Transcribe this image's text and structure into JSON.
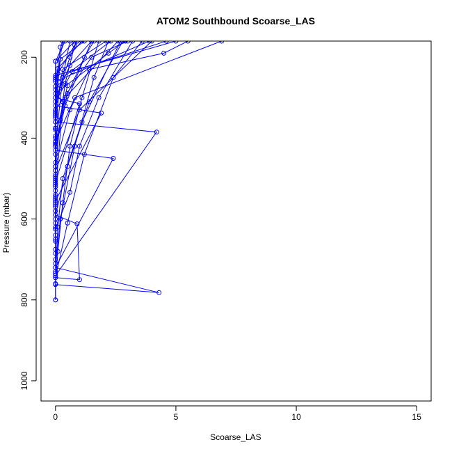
{
  "chart_data": {
    "type": "line",
    "title": "ATOM2 Southbound Scoarse_LAS",
    "xlabel": "Scoarse_LAS",
    "ylabel": "Pressure (mbar)",
    "xlim": [
      -0.6,
      15.6
    ],
    "ylim": [
      1050,
      160
    ],
    "y_reversed": true,
    "grid": false,
    "legend": "none",
    "x_ticks": [
      0,
      5,
      10,
      15
    ],
    "y_ticks": [
      200,
      400,
      600,
      800,
      1000
    ],
    "color": "#0000ff",
    "marker": "open-circle",
    "series": [
      {
        "points": [
          [
            0,
            800
          ],
          [
            0,
            760
          ],
          [
            0.1,
            680
          ],
          [
            0.3,
            560
          ],
          [
            0.6,
            420
          ],
          [
            1.1,
            300
          ],
          [
            1.8,
            160
          ]
        ]
      },
      {
        "points": [
          [
            0,
            800
          ],
          [
            0,
            745
          ],
          [
            0.5,
            610
          ],
          [
            1.2,
            440
          ],
          [
            2.4,
            250
          ],
          [
            3.6,
            160
          ]
        ]
      },
      {
        "points": [
          [
            0,
            762
          ],
          [
            4.3,
            782
          ],
          [
            0,
            720
          ],
          [
            0.2,
            600
          ],
          [
            0.8,
            420
          ],
          [
            1.6,
            250
          ],
          [
            2.2,
            160
          ]
        ]
      },
      {
        "points": [
          [
            0,
            745
          ],
          [
            1.0,
            750
          ],
          [
            0.9,
            612
          ],
          [
            0,
            590
          ],
          [
            0.5,
            470
          ],
          [
            1.4,
            310
          ],
          [
            2.8,
            160
          ]
        ]
      },
      {
        "points": [
          [
            0,
            730
          ],
          [
            0,
            625
          ],
          [
            0.6,
            534
          ],
          [
            1.0,
            420
          ],
          [
            1.8,
            300
          ],
          [
            3.2,
            160
          ]
        ]
      },
      {
        "points": [
          [
            0,
            720
          ],
          [
            2.4,
            450
          ],
          [
            0,
            430
          ],
          [
            0.4,
            320
          ],
          [
            1.0,
            230
          ],
          [
            1.5,
            160
          ]
        ]
      },
      {
        "points": [
          [
            0,
            740
          ],
          [
            4.2,
            385
          ],
          [
            0,
            360
          ],
          [
            0.2,
            270
          ],
          [
            0.6,
            200
          ],
          [
            0.9,
            160
          ]
        ]
      },
      {
        "points": [
          [
            0,
            700
          ],
          [
            0,
            555
          ],
          [
            1.9,
            338
          ],
          [
            0,
            320
          ],
          [
            0.3,
            250
          ],
          [
            0.6,
            160
          ]
        ]
      },
      {
        "points": [
          [
            0,
            685
          ],
          [
            0,
            510
          ],
          [
            1.0,
            315
          ],
          [
            0,
            300
          ],
          [
            0.1,
            240
          ],
          [
            0.3,
            160
          ]
        ]
      },
      {
        "points": [
          [
            0,
            655
          ],
          [
            0,
            495
          ],
          [
            0,
            410
          ],
          [
            0.5,
            290
          ],
          [
            1.2,
            200
          ],
          [
            1.6,
            160
          ]
        ]
      },
      {
        "points": [
          [
            0,
            640
          ],
          [
            0,
            540
          ],
          [
            0.3,
            310
          ],
          [
            0,
            290
          ],
          [
            2.2,
            190
          ],
          [
            2.9,
            160
          ]
        ]
      },
      {
        "points": [
          [
            0,
            710
          ],
          [
            0,
            580
          ],
          [
            0,
            470
          ],
          [
            0.6,
            330
          ],
          [
            1.4,
            230
          ],
          [
            4.5,
            190
          ],
          [
            5.5,
            160
          ]
        ]
      },
      {
        "points": [
          [
            0,
            620
          ],
          [
            0,
            500
          ],
          [
            0,
            400
          ],
          [
            0,
            330
          ],
          [
            1.5,
            200
          ],
          [
            3.0,
            160
          ]
        ]
      },
      {
        "points": [
          [
            0,
            600
          ],
          [
            0,
            470
          ],
          [
            0.2,
            355
          ],
          [
            0.4,
            265
          ],
          [
            0.8,
            170
          ],
          [
            0.9,
            160
          ]
        ]
      },
      {
        "points": [
          [
            0,
            590
          ],
          [
            0,
            440
          ],
          [
            0,
            350
          ],
          [
            0,
            272
          ],
          [
            0.2,
            175
          ],
          [
            0.3,
            160
          ]
        ]
      },
      {
        "points": [
          [
            0,
            560
          ],
          [
            0,
            420
          ],
          [
            0,
            340
          ],
          [
            0,
            255
          ],
          [
            0,
            210
          ],
          [
            0.8,
            160
          ]
        ]
      },
      {
        "points": [
          [
            0,
            545
          ],
          [
            0,
            395
          ],
          [
            0.5,
            270
          ],
          [
            0,
            250
          ],
          [
            0.9,
            160
          ]
        ]
      },
      {
        "points": [
          [
            0,
            530
          ],
          [
            0,
            375
          ],
          [
            0,
            300
          ],
          [
            0.6,
            220
          ],
          [
            1.5,
            160
          ]
        ]
      },
      {
        "points": [
          [
            0,
            520
          ],
          [
            0,
            360
          ],
          [
            0,
            280
          ],
          [
            0,
            210
          ],
          [
            0.4,
            160
          ]
        ]
      },
      {
        "points": [
          [
            0,
            480
          ],
          [
            0,
            330
          ],
          [
            0.3,
            230
          ],
          [
            2.1,
            160
          ]
        ]
      },
      {
        "points": [
          [
            0,
            460
          ],
          [
            0,
            310
          ],
          [
            0.7,
            235
          ],
          [
            4.6,
            160
          ]
        ]
      },
      {
        "points": [
          [
            0,
            580
          ],
          [
            0,
            408
          ],
          [
            0.8,
            300
          ],
          [
            6.9,
            160
          ]
        ]
      },
      {
        "points": [
          [
            0,
            515
          ],
          [
            0,
            420
          ],
          [
            0.4,
            300
          ],
          [
            2.6,
            160
          ]
        ]
      },
      {
        "points": [
          [
            0,
            490
          ],
          [
            0,
            380
          ],
          [
            0,
            260
          ],
          [
            3.9,
            160
          ]
        ]
      },
      {
        "points": [
          [
            0,
            570
          ],
          [
            0,
            345
          ],
          [
            0,
            245
          ],
          [
            5.0,
            160
          ]
        ]
      },
      {
        "points": [
          [
            0,
            550
          ],
          [
            0,
            335
          ],
          [
            0.2,
            205
          ],
          [
            1.2,
            160
          ]
        ]
      },
      {
        "points": [
          [
            0,
            610
          ],
          [
            0,
            415
          ],
          [
            0.3,
            250
          ],
          [
            2.3,
            160
          ]
        ]
      },
      {
        "points": [
          [
            0,
            650
          ],
          [
            0,
            505
          ],
          [
            0,
            376
          ],
          [
            0.1,
            228
          ],
          [
            1.1,
            160
          ]
        ]
      },
      {
        "points": [
          [
            0,
            675
          ],
          [
            0,
            565
          ],
          [
            0,
            480
          ],
          [
            1.0,
            330
          ],
          [
            4.0,
            160
          ]
        ]
      },
      {
        "points": [
          [
            0,
            735
          ],
          [
            0.1,
            620
          ],
          [
            0.3,
            500
          ],
          [
            1.1,
            360
          ],
          [
            2.7,
            160
          ]
        ]
      }
    ]
  }
}
